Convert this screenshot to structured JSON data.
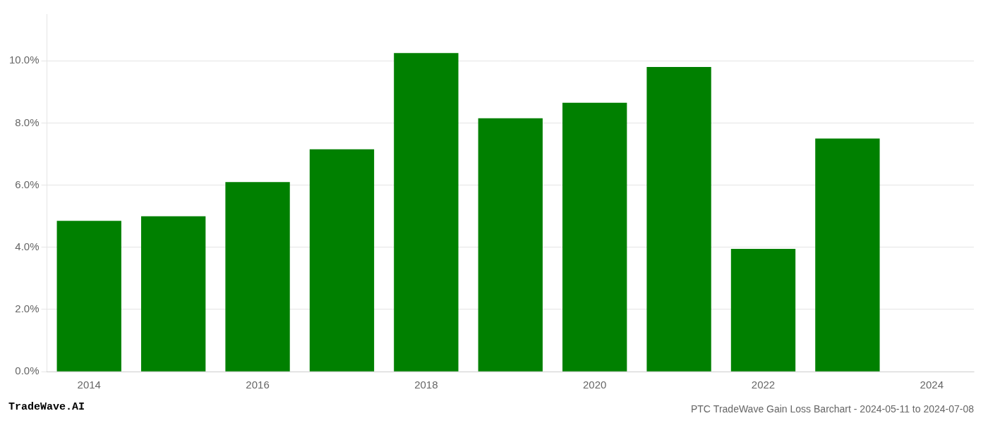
{
  "chart_data": {
    "type": "bar",
    "title": "PTC TradeWave Gain Loss Barchart - 2024-05-11 to 2024-07-08",
    "annotations": [
      "TradeWave.AI"
    ],
    "categories": [
      "2014",
      null,
      "2016",
      null,
      "2018",
      null,
      "2020",
      null,
      "2022",
      null,
      "2024"
    ],
    "values": [
      0.0485,
      0.05,
      0.061,
      0.0715,
      0.1025,
      0.0815,
      0.0865,
      0.098,
      0.0395,
      0.075,
      null
    ],
    "color": "#008000",
    "ylim": [
      0,
      0.115
    ],
    "yticks": [
      {
        "value": 0.0,
        "label": "0.0%"
      },
      {
        "value": 0.02,
        "label": "2.0%"
      },
      {
        "value": 0.04,
        "label": "4.0%"
      },
      {
        "value": 0.06,
        "label": "6.0%"
      },
      {
        "value": 0.08,
        "label": "8.0%"
      },
      {
        "value": 0.1,
        "label": "10.0%"
      }
    ],
    "grid": true
  }
}
